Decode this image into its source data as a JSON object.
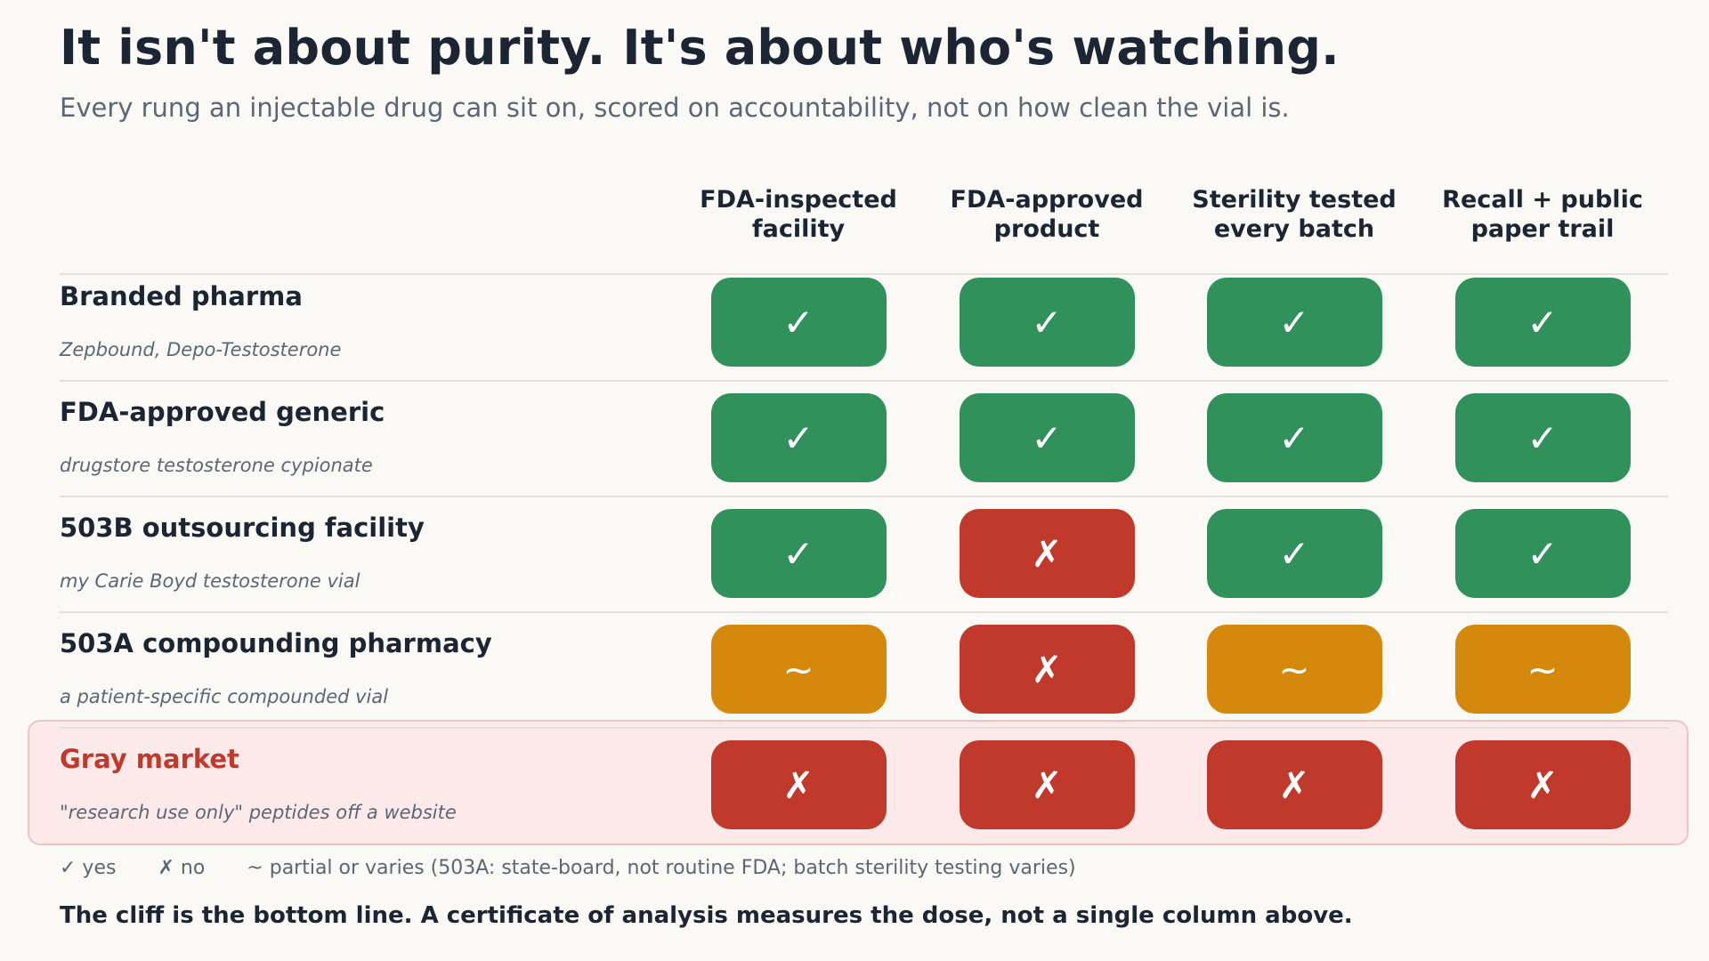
{
  "title": "It isn't about purity. It's about who's watching.",
  "subtitle": "Every rung an injectable drug can sit on, scored on accountability, not on how clean the vial is.",
  "columns": [
    "FDA-inspected\nfacility",
    "FDA-approved\nproduct",
    "Sterility tested\nevery batch",
    "Recall + public\npaper trail"
  ],
  "symbols": {
    "yes": "✓",
    "no": "✗",
    "partial": "~"
  },
  "colors": {
    "yes": "#30915b",
    "no": "#c0392b",
    "partial": "#d4890c"
  },
  "rows": [
    {
      "name": "Branded pharma",
      "example": "Zepbound, Depo-Testosterone",
      "values": [
        "yes",
        "yes",
        "yes",
        "yes"
      ]
    },
    {
      "name": "FDA-approved generic",
      "example": "drugstore testosterone cypionate",
      "values": [
        "yes",
        "yes",
        "yes",
        "yes"
      ]
    },
    {
      "name": "503B outsourcing facility",
      "example": "my Carie Boyd testosterone vial",
      "values": [
        "yes",
        "no",
        "yes",
        "yes"
      ]
    },
    {
      "name": "503A compounding pharmacy",
      "example": "a patient-specific compounded vial",
      "values": [
        "partial",
        "no",
        "partial",
        "partial"
      ]
    },
    {
      "name": "Gray market",
      "example": "\"research use only\" peptides off a website",
      "values": [
        "no",
        "no",
        "no",
        "no"
      ]
    }
  ],
  "legend": {
    "yes": "✓ yes",
    "no": "✗ no",
    "partial": "~ partial or varies (503A: state-board, not routine FDA; batch sterility testing varies)"
  },
  "footer": "The cliff is the bottom line. A certificate of analysis measures the dose, not a single column above."
}
